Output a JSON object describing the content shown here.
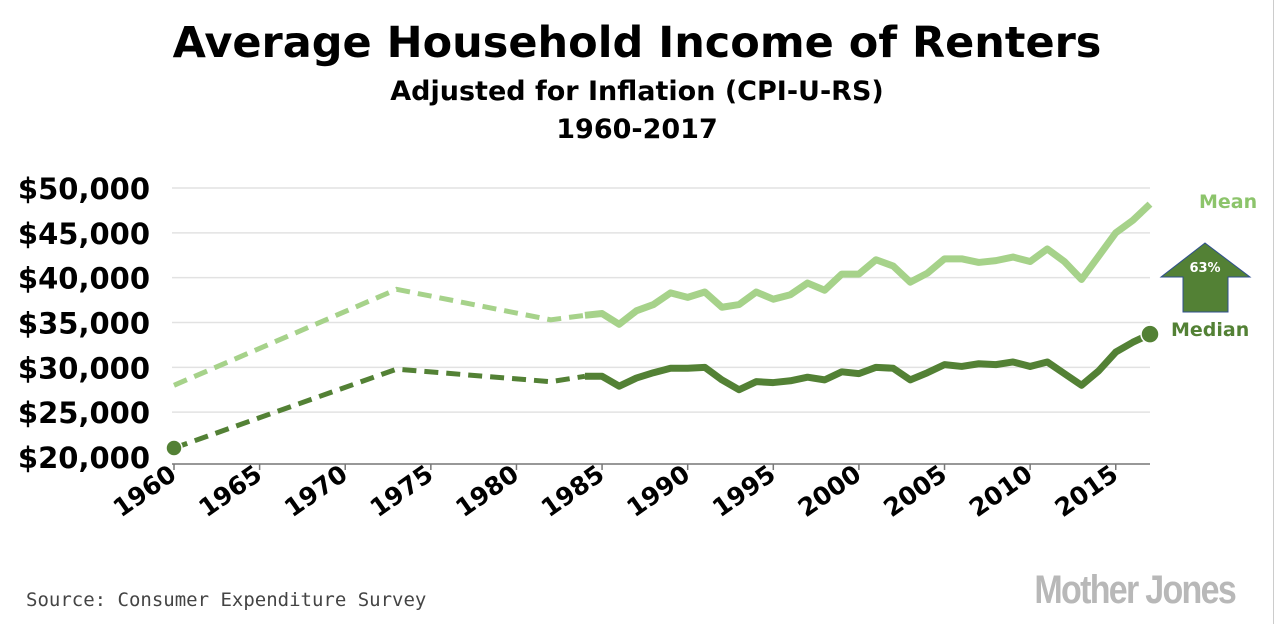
{
  "chart_data": {
    "type": "line",
    "title": "Average Household Income of Renters",
    "subtitle": "Adjusted for Inflation (CPI-U-RS)",
    "subtitle2": "1960-2017",
    "xlabel": "",
    "ylabel": "",
    "xlim": [
      1960,
      2017
    ],
    "ylim": [
      20000,
      50000
    ],
    "yticks": [
      20000,
      25000,
      30000,
      35000,
      40000,
      45000,
      50000
    ],
    "ytick_labels": [
      "$20,000",
      "$25,000",
      "$30,000",
      "$35,000",
      "$40,000",
      "$45,000",
      "$50,000"
    ],
    "xticks": [
      1960,
      1965,
      1970,
      1975,
      1980,
      1985,
      1990,
      1995,
      2000,
      2005,
      2010,
      2015
    ],
    "xtick_labels": [
      "1960",
      "1965",
      "1970",
      "1975",
      "1980",
      "1985",
      "1990",
      "1995",
      "2000",
      "2005",
      "2010",
      "2015"
    ],
    "grid": true,
    "dashed_until": 1984,
    "series": [
      {
        "name": "Mean",
        "color": "#a6d28a",
        "x": [
          1960,
          1973,
          1982,
          1984,
          1985,
          1986,
          1987,
          1988,
          1989,
          1990,
          1991,
          1992,
          1993,
          1994,
          1995,
          1996,
          1997,
          1998,
          1999,
          2000,
          2001,
          2002,
          2003,
          2004,
          2005,
          2006,
          2007,
          2008,
          2009,
          2010,
          2011,
          2012,
          2013,
          2014,
          2015,
          2016,
          2017
        ],
        "y": [
          28000,
          38700,
          35300,
          35800,
          36000,
          34800,
          36300,
          37000,
          38300,
          37800,
          38400,
          36700,
          37000,
          38400,
          37600,
          38100,
          39400,
          38600,
          40400,
          40400,
          42000,
          41300,
          39500,
          40500,
          42100,
          42100,
          41700,
          41900,
          42300,
          41800,
          43200,
          41800,
          39800,
          42400,
          45000,
          46400,
          48200
        ]
      },
      {
        "name": "Median",
        "color": "#538135",
        "x": [
          1960,
          1973,
          1982,
          1984,
          1985,
          1986,
          1987,
          1988,
          1989,
          1990,
          1991,
          1992,
          1993,
          1994,
          1995,
          1996,
          1997,
          1998,
          1999,
          2000,
          2001,
          2002,
          2003,
          2004,
          2005,
          2006,
          2007,
          2008,
          2009,
          2010,
          2011,
          2012,
          2013,
          2014,
          2015,
          2016,
          2017
        ],
        "y": [
          21000,
          29800,
          28400,
          29000,
          29000,
          27900,
          28800,
          29400,
          29900,
          29900,
          30000,
          28600,
          27500,
          28400,
          28300,
          28500,
          28900,
          28600,
          29500,
          29300,
          30000,
          29900,
          28600,
          29400,
          30300,
          30100,
          30400,
          30300,
          30600,
          30100,
          30600,
          29300,
          28000,
          29600,
          31700,
          32800,
          33700
        ]
      }
    ],
    "annotations": {
      "arrow_label": "63%",
      "mean_label": "Mean",
      "median_label": "Median"
    },
    "source": "Source: Consumer Expenditure Survey",
    "logo": "Mother Jones"
  }
}
